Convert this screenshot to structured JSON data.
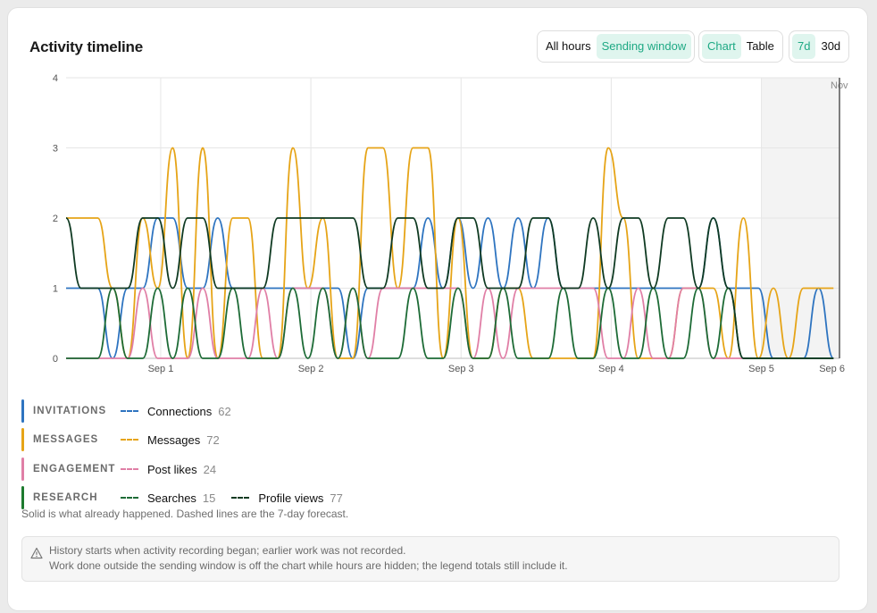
{
  "header": {
    "title": "Activity timeline",
    "hours_toggle": [
      "All hours",
      "Sending window"
    ],
    "hours_selected": "Sending window",
    "view_toggle": [
      "Chart",
      "Table"
    ],
    "view_selected": "Chart",
    "range_toggle": [
      "7d",
      "30d"
    ],
    "range_selected": "7d"
  },
  "chart_data": {
    "type": "line",
    "y_ticks": [
      "0",
      "1",
      "2",
      "3",
      "4"
    ],
    "ylim": [
      0,
      4
    ],
    "x_ticks": [
      "Sep 1",
      "Sep 2",
      "Sep 3",
      "Sep 4",
      "Sep 5",
      "Sep 6"
    ],
    "x_tick_days": [
      1,
      2,
      3,
      4,
      5,
      5.47
    ],
    "xlim": [
      0.37,
      5.52
    ],
    "forecast_start": 5.0,
    "forecast_label": "Nov",
    "grid": true,
    "series": [
      {
        "name": "Connections",
        "color": "#2e74c0",
        "points": [
          [
            0.37,
            1
          ],
          [
            0.47,
            1
          ],
          [
            0.58,
            1
          ],
          [
            0.68,
            0
          ],
          [
            0.78,
            1
          ],
          [
            0.88,
            1
          ],
          [
            0.98,
            2
          ],
          [
            1.08,
            2
          ],
          [
            1.18,
            1
          ],
          [
            1.28,
            1
          ],
          [
            1.38,
            2
          ],
          [
            1.48,
            1
          ],
          [
            1.58,
            1
          ],
          [
            1.68,
            1
          ],
          [
            1.78,
            1
          ],
          [
            1.88,
            1
          ],
          [
            1.98,
            1
          ],
          [
            2.08,
            1
          ],
          [
            2.18,
            1
          ],
          [
            2.28,
            0
          ],
          [
            2.38,
            1
          ],
          [
            2.48,
            1
          ],
          [
            2.58,
            1
          ],
          [
            2.68,
            1
          ],
          [
            2.78,
            2
          ],
          [
            2.88,
            1
          ],
          [
            2.98,
            2
          ],
          [
            3.08,
            1
          ],
          [
            3.18,
            2
          ],
          [
            3.28,
            1
          ],
          [
            3.38,
            2
          ],
          [
            3.48,
            1
          ],
          [
            3.58,
            2
          ],
          [
            3.68,
            1
          ],
          [
            3.78,
            1
          ],
          [
            3.88,
            1
          ],
          [
            3.98,
            1
          ],
          [
            4.08,
            1
          ],
          [
            4.18,
            1
          ],
          [
            4.28,
            1
          ],
          [
            4.38,
            1
          ],
          [
            4.48,
            1
          ],
          [
            4.58,
            1
          ],
          [
            4.68,
            2
          ],
          [
            4.78,
            1
          ],
          [
            4.88,
            1
          ],
          [
            4.98,
            1
          ],
          [
            5.08,
            0
          ],
          [
            5.18,
            0
          ],
          [
            5.28,
            0
          ],
          [
            5.38,
            1
          ],
          [
            5.48,
            0
          ]
        ]
      },
      {
        "name": "Messages",
        "color": "#e6a417",
        "points": [
          [
            0.37,
            2
          ],
          [
            0.47,
            2
          ],
          [
            0.58,
            2
          ],
          [
            0.68,
            1
          ],
          [
            0.78,
            0
          ],
          [
            0.88,
            2
          ],
          [
            0.98,
            1
          ],
          [
            1.08,
            3
          ],
          [
            1.18,
            0
          ],
          [
            1.28,
            3
          ],
          [
            1.38,
            0
          ],
          [
            1.48,
            2
          ],
          [
            1.58,
            2
          ],
          [
            1.68,
            0
          ],
          [
            1.78,
            0
          ],
          [
            1.88,
            3
          ],
          [
            1.98,
            1
          ],
          [
            2.08,
            2
          ],
          [
            2.18,
            0
          ],
          [
            2.28,
            0
          ],
          [
            2.38,
            3
          ],
          [
            2.48,
            3
          ],
          [
            2.58,
            1
          ],
          [
            2.68,
            3
          ],
          [
            2.78,
            3
          ],
          [
            2.88,
            0
          ],
          [
            2.98,
            2
          ],
          [
            3.08,
            0
          ],
          [
            3.18,
            0
          ],
          [
            3.28,
            1
          ],
          [
            3.38,
            1
          ],
          [
            3.48,
            0
          ],
          [
            3.58,
            0
          ],
          [
            3.68,
            0
          ],
          [
            3.78,
            0
          ],
          [
            3.88,
            0
          ],
          [
            3.98,
            3
          ],
          [
            4.08,
            2
          ],
          [
            4.18,
            0
          ],
          [
            4.28,
            0
          ],
          [
            4.38,
            0
          ],
          [
            4.48,
            1
          ],
          [
            4.58,
            1
          ],
          [
            4.68,
            1
          ],
          [
            4.78,
            0
          ],
          [
            4.88,
            2
          ],
          [
            4.98,
            0
          ],
          [
            5.08,
            1
          ],
          [
            5.18,
            0
          ],
          [
            5.28,
            1
          ],
          [
            5.38,
            1
          ],
          [
            5.48,
            1
          ]
        ]
      },
      {
        "name": "Post likes",
        "color": "#e07fa6",
        "points": [
          [
            0.37,
            0
          ],
          [
            0.47,
            0
          ],
          [
            0.58,
            0
          ],
          [
            0.68,
            0
          ],
          [
            0.78,
            0
          ],
          [
            0.88,
            1
          ],
          [
            0.98,
            0
          ],
          [
            1.08,
            0
          ],
          [
            1.18,
            0
          ],
          [
            1.28,
            1
          ],
          [
            1.38,
            0
          ],
          [
            1.48,
            0
          ],
          [
            1.58,
            0
          ],
          [
            1.68,
            1
          ],
          [
            1.78,
            0
          ],
          [
            1.88,
            1
          ],
          [
            1.98,
            1
          ],
          [
            2.08,
            1
          ],
          [
            2.18,
            0
          ],
          [
            2.28,
            1
          ],
          [
            2.38,
            0
          ],
          [
            2.48,
            1
          ],
          [
            2.58,
            1
          ],
          [
            2.68,
            1
          ],
          [
            2.78,
            1
          ],
          [
            2.88,
            1
          ],
          [
            2.98,
            1
          ],
          [
            3.08,
            0
          ],
          [
            3.18,
            1
          ],
          [
            3.28,
            0
          ],
          [
            3.38,
            1
          ],
          [
            3.48,
            1
          ],
          [
            3.58,
            1
          ],
          [
            3.68,
            1
          ],
          [
            3.78,
            1
          ],
          [
            3.88,
            1
          ],
          [
            3.98,
            0
          ],
          [
            4.08,
            0
          ],
          [
            4.18,
            1
          ],
          [
            4.28,
            0
          ],
          [
            4.38,
            0
          ],
          [
            4.48,
            1
          ],
          [
            4.58,
            1
          ],
          [
            4.68,
            0
          ],
          [
            4.78,
            0
          ],
          [
            4.88,
            0
          ],
          [
            4.98,
            0
          ],
          [
            5.08,
            0
          ],
          [
            5.18,
            0
          ],
          [
            5.28,
            0
          ],
          [
            5.38,
            0
          ],
          [
            5.48,
            0
          ]
        ]
      },
      {
        "name": "Searches",
        "color": "#1d6b36",
        "points": [
          [
            0.37,
            0
          ],
          [
            0.47,
            0
          ],
          [
            0.58,
            0
          ],
          [
            0.68,
            1
          ],
          [
            0.78,
            0
          ],
          [
            0.88,
            0
          ],
          [
            0.98,
            1
          ],
          [
            1.08,
            0
          ],
          [
            1.18,
            1
          ],
          [
            1.28,
            0
          ],
          [
            1.38,
            0
          ],
          [
            1.48,
            1
          ],
          [
            1.58,
            0
          ],
          [
            1.68,
            0
          ],
          [
            1.78,
            0
          ],
          [
            1.88,
            1
          ],
          [
            1.98,
            0
          ],
          [
            2.08,
            1
          ],
          [
            2.18,
            0
          ],
          [
            2.28,
            1
          ],
          [
            2.38,
            0
          ],
          [
            2.48,
            0
          ],
          [
            2.58,
            0
          ],
          [
            2.68,
            1
          ],
          [
            2.78,
            0
          ],
          [
            2.88,
            0
          ],
          [
            2.98,
            1
          ],
          [
            3.08,
            0
          ],
          [
            3.18,
            0
          ],
          [
            3.28,
            1
          ],
          [
            3.38,
            0
          ],
          [
            3.48,
            0
          ],
          [
            3.58,
            0
          ],
          [
            3.68,
            1
          ],
          [
            3.78,
            0
          ],
          [
            3.88,
            0
          ],
          [
            3.98,
            1
          ],
          [
            4.08,
            0
          ],
          [
            4.18,
            0
          ],
          [
            4.28,
            1
          ],
          [
            4.38,
            0
          ],
          [
            4.48,
            0
          ],
          [
            4.58,
            1
          ],
          [
            4.68,
            0
          ],
          [
            4.78,
            1
          ],
          [
            4.88,
            0
          ],
          [
            4.98,
            0
          ],
          [
            5.08,
            0
          ],
          [
            5.18,
            0
          ],
          [
            5.28,
            0
          ],
          [
            5.38,
            0
          ],
          [
            5.48,
            0
          ]
        ]
      },
      {
        "name": "Profile views",
        "color": "#0f3a22",
        "points": [
          [
            0.37,
            2
          ],
          [
            0.47,
            1
          ],
          [
            0.58,
            1
          ],
          [
            0.68,
            1
          ],
          [
            0.78,
            1
          ],
          [
            0.88,
            2
          ],
          [
            0.98,
            2
          ],
          [
            1.08,
            1
          ],
          [
            1.18,
            2
          ],
          [
            1.28,
            2
          ],
          [
            1.38,
            1
          ],
          [
            1.48,
            1
          ],
          [
            1.58,
            1
          ],
          [
            1.68,
            1
          ],
          [
            1.78,
            2
          ],
          [
            1.88,
            2
          ],
          [
            1.98,
            2
          ],
          [
            2.08,
            2
          ],
          [
            2.18,
            2
          ],
          [
            2.28,
            2
          ],
          [
            2.38,
            1
          ],
          [
            2.48,
            1
          ],
          [
            2.58,
            2
          ],
          [
            2.68,
            2
          ],
          [
            2.78,
            1
          ],
          [
            2.88,
            1
          ],
          [
            2.98,
            2
          ],
          [
            3.08,
            2
          ],
          [
            3.18,
            1
          ],
          [
            3.28,
            1
          ],
          [
            3.38,
            1
          ],
          [
            3.48,
            2
          ],
          [
            3.58,
            2
          ],
          [
            3.68,
            1
          ],
          [
            3.78,
            1
          ],
          [
            3.88,
            2
          ],
          [
            3.98,
            1
          ],
          [
            4.08,
            2
          ],
          [
            4.18,
            2
          ],
          [
            4.28,
            1
          ],
          [
            4.38,
            2
          ],
          [
            4.48,
            2
          ],
          [
            4.58,
            1
          ],
          [
            4.68,
            2
          ],
          [
            4.78,
            1
          ],
          [
            4.88,
            0
          ],
          [
            4.98,
            0
          ],
          [
            5.08,
            0
          ],
          [
            5.18,
            0
          ],
          [
            5.28,
            0
          ],
          [
            5.38,
            0
          ],
          [
            5.48,
            0
          ]
        ]
      }
    ]
  },
  "legend": [
    {
      "category": "INVITATIONS",
      "bar_color": "#2e74c0",
      "items": [
        {
          "label": "Connections",
          "count": "62",
          "color": "#2e74c0"
        }
      ]
    },
    {
      "category": "MESSAGES",
      "bar_color": "#e6a417",
      "items": [
        {
          "label": "Messages",
          "count": "72",
          "color": "#e6a417"
        }
      ]
    },
    {
      "category": "ENGAGEMENT",
      "bar_color": "#e07fa6",
      "items": [
        {
          "label": "Post likes",
          "count": "24",
          "color": "#e07fa6"
        }
      ]
    },
    {
      "category": "RESEARCH",
      "bar_color": "#1d7a2e",
      "items": [
        {
          "label": "Searches",
          "count": "15",
          "color": "#1d6b36"
        },
        {
          "label": "Profile views",
          "count": "77",
          "color": "#0f3a22"
        }
      ]
    }
  ],
  "footnote": "Solid is what already happened. Dashed lines are the 7-day forecast.",
  "notice": {
    "icon": "warning-triangle-icon",
    "line1": "History starts when activity recording began; earlier work was not recorded.",
    "line2": "Work done outside the sending window is off the chart while hours are hidden; the legend totals still include it."
  }
}
